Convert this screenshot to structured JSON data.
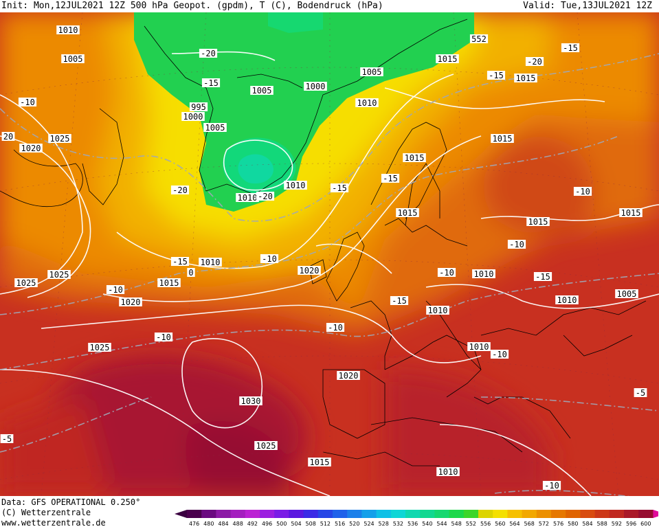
{
  "header": {
    "init_text": "Init: Mon,12JUL2021 12Z",
    "title_text": "500 hPa Geopot. (gpdm), T (C), Bodendruck (hPa)",
    "valid_text": "Valid: Tue,13JUL2021 12Z"
  },
  "footer": {
    "source_text": "Data: GFS OPERATIONAL 0.250°",
    "copyright_text": "(C) Wetterzentrale",
    "url_text": "www.wetterzentrale.de"
  },
  "colorbar": {
    "ticks": [
      "476",
      "480",
      "484",
      "488",
      "492",
      "496",
      "500",
      "504",
      "508",
      "512",
      "516",
      "520",
      "524",
      "528",
      "532",
      "536",
      "540",
      "544",
      "548",
      "552",
      "556",
      "560",
      "564",
      "568",
      "572",
      "576",
      "580",
      "584",
      "588",
      "592",
      "596",
      "600"
    ],
    "colors": [
      "#4a004d",
      "#6a0a80",
      "#8c1aa6",
      "#a41fbf",
      "#bb22d3",
      "#9b1fe0",
      "#7a1de6",
      "#5a18e0",
      "#3a2ae6",
      "#2646e6",
      "#1f62ea",
      "#1b80ea",
      "#14a0ea",
      "#0fc0e6",
      "#0fd6d6",
      "#10d8b0",
      "#12d890",
      "#16d870",
      "#1cd84a",
      "#3cd62a",
      "#dcd400",
      "#f4e000",
      "#f6c000",
      "#f2a800",
      "#ec9000",
      "#e67800",
      "#e06400",
      "#d84c10",
      "#cc3818",
      "#c02820",
      "#aa1828",
      "#960c30"
    ]
  },
  "map": {
    "pressure_labels": [
      "1010",
      "1005",
      "995",
      "1000",
      "1005",
      "1005",
      "1000",
      "1005",
      "1010",
      "1010",
      "1015",
      "1015",
      "1015",
      "1025",
      "1020",
      "1025",
      "1025",
      "1015",
      "1010",
      "1015",
      "1020",
      "1010",
      "1010",
      "1015",
      "1015",
      "1015",
      "1010",
      "1010",
      "1010",
      "1005",
      "1025",
      "1030",
      "1025",
      "1015",
      "1020",
      "1010",
      "1010",
      "1020",
      "552"
    ],
    "temperature_labels": [
      "-10",
      "20",
      "-20",
      "-15",
      "-20",
      "-15",
      "-15",
      "-15",
      "-20",
      "-15",
      "-15",
      "-20",
      "-15",
      "-10",
      "-10",
      "-10",
      "-10",
      "-10",
      "-15",
      "-10",
      "-10",
      "-10",
      "-10",
      "-5",
      "-5",
      "0"
    ]
  }
}
